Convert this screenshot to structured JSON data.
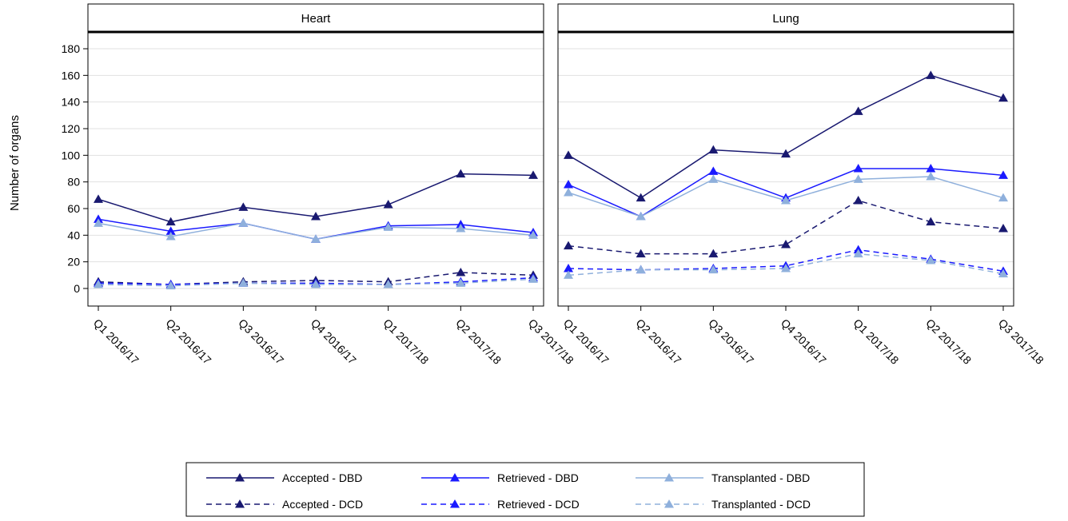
{
  "chart_data": {
    "type": "line",
    "ylabel": "Number of organs",
    "ylim": [
      -15,
      190
    ],
    "yticks": [
      0,
      20,
      40,
      60,
      80,
      100,
      120,
      140,
      160,
      180
    ],
    "grid": true,
    "categories": [
      "Q1 2016/17",
      "Q2 2016/17",
      "Q3 2016/17",
      "Q4 2016/17",
      "Q1 2017/18",
      "Q2 2017/18",
      "Q3 2017/18"
    ],
    "legend_position": "bottom",
    "series_styles": [
      {
        "name": "Accepted - DBD",
        "color": "#191970",
        "dash": "solid"
      },
      {
        "name": "Retrieved - DBD",
        "color": "#1a1aff",
        "dash": "solid"
      },
      {
        "name": "Transplanted - DBD",
        "color": "#8fb0dc",
        "dash": "solid"
      },
      {
        "name": "Accepted - DCD",
        "color": "#191970",
        "dash": "dashed"
      },
      {
        "name": "Retrieved - DCD",
        "color": "#1a1aff",
        "dash": "dashed"
      },
      {
        "name": "Transplanted - DCD",
        "color": "#8fb0dc",
        "dash": "dashed"
      }
    ],
    "panels": [
      {
        "title": "Heart",
        "series": [
          {
            "name": "Accepted - DBD",
            "values": [
              67,
              50,
              61,
              54,
              63,
              86,
              85
            ]
          },
          {
            "name": "Retrieved - DBD",
            "values": [
              52,
              43,
              49,
              37,
              47,
              48,
              42
            ]
          },
          {
            "name": "Transplanted - DBD",
            "values": [
              49,
              39,
              49,
              37,
              46,
              45,
              40
            ]
          },
          {
            "name": "Accepted - DCD",
            "values": [
              5,
              3,
              5,
              6,
              5,
              12,
              10
            ]
          },
          {
            "name": "Retrieved - DCD",
            "values": [
              4,
              3,
              4,
              4,
              3,
              5,
              8
            ]
          },
          {
            "name": "Transplanted - DCD",
            "values": [
              3,
              2,
              4,
              3,
              3,
              4,
              7
            ]
          }
        ]
      },
      {
        "title": "Lung",
        "series": [
          {
            "name": "Accepted - DBD",
            "values": [
              100,
              68,
              104,
              101,
              133,
              160,
              143
            ]
          },
          {
            "name": "Retrieved - DBD",
            "values": [
              78,
              54,
              88,
              68,
              90,
              90,
              85
            ]
          },
          {
            "name": "Transplanted - DBD",
            "values": [
              72,
              54,
              82,
              66,
              82,
              84,
              68
            ]
          },
          {
            "name": "Accepted - DCD",
            "values": [
              32,
              26,
              26,
              33,
              66,
              50,
              45
            ]
          },
          {
            "name": "Retrieved - DCD",
            "values": [
              15,
              14,
              15,
              17,
              29,
              22,
              13
            ]
          },
          {
            "name": "Transplanted - DCD",
            "values": [
              10,
              14,
              14,
              15,
              26,
              21,
              11
            ]
          }
        ]
      }
    ]
  }
}
